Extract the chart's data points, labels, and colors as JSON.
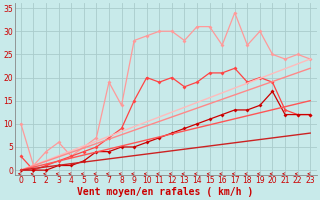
{
  "xlabel": "Vent moyen/en rafales ( km/h )",
  "bg_color": "#c8eaea",
  "grid_color": "#aacccc",
  "xlim": [
    -0.5,
    23.5
  ],
  "ylim": [
    -1,
    36
  ],
  "yticks": [
    0,
    5,
    10,
    15,
    20,
    25,
    30,
    35
  ],
  "xticks": [
    0,
    1,
    2,
    3,
    4,
    5,
    6,
    7,
    8,
    9,
    10,
    11,
    12,
    13,
    14,
    15,
    16,
    17,
    18,
    19,
    20,
    21,
    22,
    23
  ],
  "series": [
    {
      "x": [
        0,
        1,
        2,
        3,
        4,
        5,
        6,
        7,
        8,
        9,
        10,
        11,
        12,
        13,
        14,
        15,
        16,
        17,
        18,
        19,
        20,
        21,
        22,
        23
      ],
      "y": [
        10,
        1,
        4,
        6,
        3,
        5,
        7,
        19,
        14,
        28,
        29,
        30,
        30,
        28,
        31,
        31,
        27,
        34,
        27,
        30,
        25,
        24,
        25,
        24
      ],
      "color": "#ff9999",
      "lw": 0.9,
      "marker": "D",
      "ms": 2.0
    },
    {
      "x": [
        0,
        1,
        2,
        3,
        4,
        5,
        6,
        7,
        8,
        9,
        10,
        11,
        12,
        13,
        14,
        15,
        16,
        17,
        18,
        19,
        20,
        21,
        22,
        23
      ],
      "y": [
        3,
        0,
        1,
        2,
        3,
        4,
        5,
        7,
        9,
        15,
        20,
        19,
        20,
        18,
        19,
        21,
        21,
        22,
        19,
        20,
        19,
        13,
        12,
        12
      ],
      "color": "#ff4444",
      "lw": 0.9,
      "marker": "D",
      "ms": 2.0
    },
    {
      "x": [
        0,
        1,
        2,
        3,
        4,
        5,
        6,
        7,
        8,
        9,
        10,
        11,
        12,
        13,
        14,
        15,
        16,
        17,
        18,
        19,
        20,
        21,
        22,
        23
      ],
      "y": [
        0,
        0,
        0,
        1,
        1,
        2,
        4,
        4,
        5,
        5,
        6,
        7,
        8,
        9,
        10,
        11,
        12,
        13,
        13,
        14,
        17,
        12,
        12,
        12
      ],
      "color": "#cc0000",
      "lw": 0.9,
      "marker": "D",
      "ms": 2.0
    },
    {
      "x": [
        0,
        23
      ],
      "y": [
        0,
        24
      ],
      "color": "#ffbbbb",
      "lw": 1.0,
      "marker": null,
      "ms": 0
    },
    {
      "x": [
        0,
        23
      ],
      "y": [
        0,
        22
      ],
      "color": "#ff8888",
      "lw": 1.0,
      "marker": null,
      "ms": 0
    },
    {
      "x": [
        0,
        23
      ],
      "y": [
        0,
        15
      ],
      "color": "#ff5555",
      "lw": 1.0,
      "marker": null,
      "ms": 0
    },
    {
      "x": [
        0,
        23
      ],
      "y": [
        0,
        8
      ],
      "color": "#cc2222",
      "lw": 1.0,
      "marker": null,
      "ms": 0
    }
  ],
  "arrow_color": "#cc0000",
  "xlabel_color": "#cc0000",
  "tick_color": "#cc0000",
  "xlabel_fontsize": 7,
  "tick_fontsize": 5.5
}
